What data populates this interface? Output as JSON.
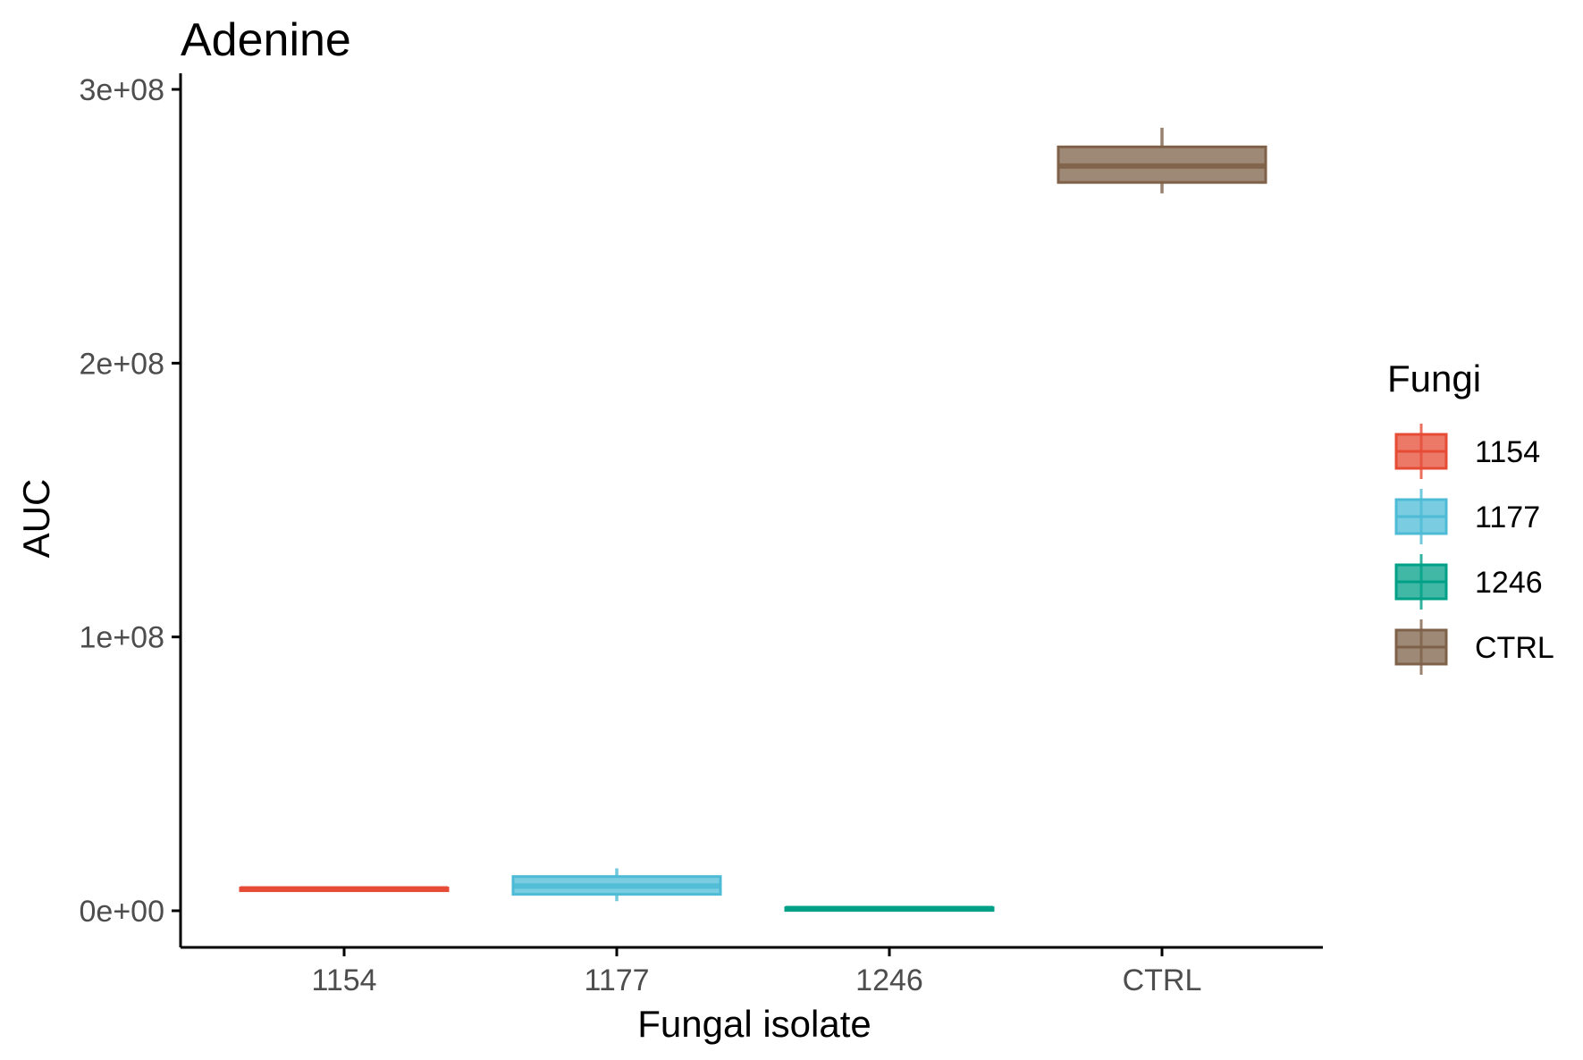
{
  "chart_data": {
    "type": "box",
    "title": "Adenine",
    "xlabel": "Fungal isolate",
    "ylabel": "AUC",
    "ylim": [
      -13000000,
      300000000
    ],
    "yticks": [
      {
        "value": 0,
        "label": "0e+00"
      },
      {
        "value": 100000000,
        "label": "1e+08"
      },
      {
        "value": 200000000,
        "label": "2e+08"
      },
      {
        "value": 300000000,
        "label": "3e+08"
      }
    ],
    "categories": [
      "1154",
      "1177",
      "1246",
      "CTRL"
    ],
    "legend": {
      "title": "Fungi",
      "position": "right"
    },
    "grid": false,
    "series": [
      {
        "name": "1154",
        "color": "#E64B35",
        "min": 7500000,
        "q1": 7700000,
        "median": 8000000,
        "q3": 8300000,
        "max": 8600000
      },
      {
        "name": "1177",
        "color": "#4DBBD5",
        "min": 3500000,
        "q1": 6000000,
        "median": 9000000,
        "q3": 12500000,
        "max": 15500000
      },
      {
        "name": "1246",
        "color": "#00A087",
        "min": 300000,
        "q1": 500000,
        "median": 800000,
        "q3": 1100000,
        "max": 1300000
      },
      {
        "name": "CTRL",
        "color": "#7E6148",
        "min": 262000000,
        "q1": 266000000,
        "median": 272000000,
        "q3": 279000000,
        "max": 286000000
      }
    ]
  }
}
